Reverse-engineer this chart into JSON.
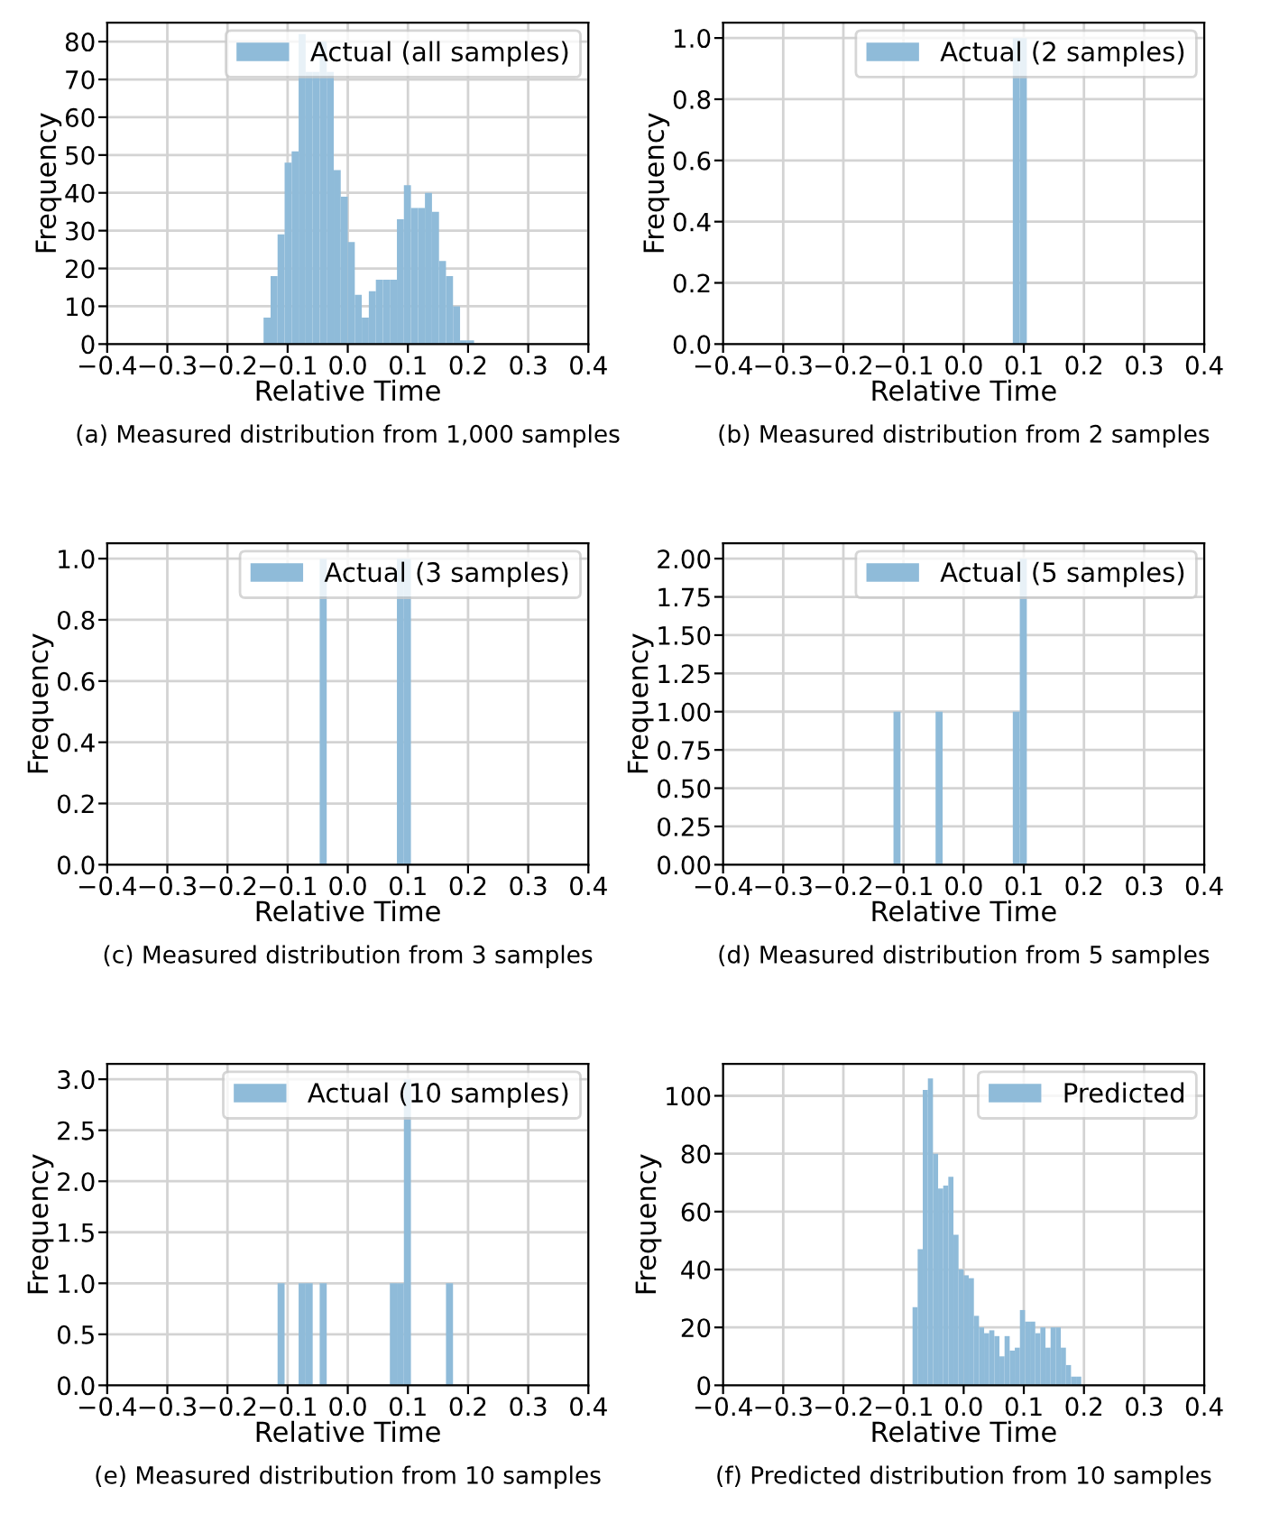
{
  "chart_data": [
    {
      "type": "histogram",
      "xlabel": "Relative Time",
      "ylabel": "Frequency",
      "annotations": [
        "(a) Measured distribution from 1,000 samples"
      ],
      "bins": [
        -0.14,
        -0.1283,
        -0.1167,
        -0.105,
        -0.0933,
        -0.0817,
        -0.07,
        -0.0583,
        -0.0467,
        -0.035,
        -0.0233,
        -0.0117,
        0.0,
        0.0117,
        0.0233,
        0.035,
        0.0467,
        0.0583,
        0.07,
        0.0817,
        0.0933,
        0.105,
        0.1167,
        0.1283,
        0.14,
        0.1517,
        0.1633,
        0.175,
        0.1867,
        0.1983,
        0.21
      ],
      "series": [
        {
          "name": "Actual (all samples)",
          "color": "#8fbbd9",
          "values": [
            7,
            18,
            29,
            48,
            51,
            82,
            72,
            72,
            80,
            72,
            46,
            39,
            27,
            13,
            7,
            14,
            17,
            17,
            17,
            33,
            42,
            36,
            36,
            40,
            35,
            22,
            18,
            10,
            1,
            1
          ]
        }
      ],
      "xlim": [
        -0.4,
        0.4
      ],
      "xticks": [
        {
          "value": -0.4,
          "label": "−0.4"
        },
        {
          "value": -0.3,
          "label": "−0.3"
        },
        {
          "value": -0.2,
          "label": "−0.2"
        },
        {
          "value": -0.1,
          "label": "−0.1"
        },
        {
          "value": 0,
          "label": "0.0"
        },
        0.1,
        0.2,
        0.3,
        0.4
      ],
      "ylim": [
        0,
        85
      ],
      "yticks": [
        0,
        10,
        20,
        30,
        40,
        50,
        60,
        70,
        80
      ],
      "grid": true,
      "legend": "top right"
    },
    {
      "type": "histogram",
      "xlabel": "Relative Time",
      "ylabel": "Frequency",
      "annotations": [
        "(b) Measured distribution from 2 samples"
      ],
      "bins": [
        -0.14,
        -0.1283,
        -0.1167,
        -0.105,
        -0.0933,
        -0.0817,
        -0.07,
        -0.0583,
        -0.0467,
        -0.035,
        -0.0233,
        -0.0117,
        0.0,
        0.0117,
        0.0233,
        0.035,
        0.0467,
        0.0583,
        0.07,
        0.0817,
        0.0933,
        0.105,
        0.1167,
        0.1283,
        0.14,
        0.1517,
        0.1633,
        0.175,
        0.1867,
        0.1983,
        0.21
      ],
      "series": [
        {
          "name": "Actual (2 samples)",
          "color": "#8fbbd9",
          "values": [
            0,
            0,
            0,
            0,
            0,
            0,
            0,
            0,
            0,
            0,
            0,
            0,
            0,
            0,
            0,
            0,
            0,
            0,
            0,
            1,
            1,
            0,
            0,
            0,
            0,
            0,
            0,
            0,
            0,
            0
          ]
        }
      ],
      "xlim": [
        -0.4,
        0.4
      ],
      "xticks": [
        {
          "value": -0.4,
          "label": "−0.4"
        },
        {
          "value": -0.3,
          "label": "−0.3"
        },
        {
          "value": -0.2,
          "label": "−0.2"
        },
        {
          "value": -0.1,
          "label": "−0.1"
        },
        {
          "value": 0,
          "label": "0.0"
        },
        0.1,
        0.2,
        0.3,
        0.4
      ],
      "ylim": [
        0,
        1.05
      ],
      "yticks": [
        {
          "value": 0,
          "label": "0.0"
        },
        0.2,
        0.4,
        0.6,
        0.8,
        {
          "value": 1,
          "label": "1.0"
        }
      ],
      "grid": true,
      "legend": "top right"
    },
    {
      "type": "histogram",
      "xlabel": "Relative Time",
      "ylabel": "Frequency",
      "annotations": [
        "(c) Measured distribution from 3 samples"
      ],
      "bins": [
        -0.14,
        -0.1283,
        -0.1167,
        -0.105,
        -0.0933,
        -0.0817,
        -0.07,
        -0.0583,
        -0.0467,
        -0.035,
        -0.0233,
        -0.0117,
        0.0,
        0.0117,
        0.0233,
        0.035,
        0.0467,
        0.0583,
        0.07,
        0.0817,
        0.0933,
        0.105,
        0.1167,
        0.1283,
        0.14,
        0.1517,
        0.1633,
        0.175,
        0.1867,
        0.1983,
        0.21
      ],
      "series": [
        {
          "name": "Actual (3 samples)",
          "color": "#8fbbd9",
          "values": [
            0,
            0,
            0,
            0,
            0,
            0,
            0,
            0,
            1,
            0,
            0,
            0,
            0,
            0,
            0,
            0,
            0,
            0,
            0,
            1,
            1,
            0,
            0,
            0,
            0,
            0,
            0,
            0,
            0,
            0
          ]
        }
      ],
      "xlim": [
        -0.4,
        0.4
      ],
      "xticks": [
        {
          "value": -0.4,
          "label": "−0.4"
        },
        {
          "value": -0.3,
          "label": "−0.3"
        },
        {
          "value": -0.2,
          "label": "−0.2"
        },
        {
          "value": -0.1,
          "label": "−0.1"
        },
        {
          "value": 0,
          "label": "0.0"
        },
        0.1,
        0.2,
        0.3,
        0.4
      ],
      "ylim": [
        0,
        1.05
      ],
      "yticks": [
        {
          "value": 0,
          "label": "0.0"
        },
        0.2,
        0.4,
        0.6,
        0.8,
        {
          "value": 1,
          "label": "1.0"
        }
      ],
      "grid": true,
      "legend": "top right"
    },
    {
      "type": "histogram",
      "xlabel": "Relative Time",
      "ylabel": "Frequency",
      "annotations": [
        "(d) Measured distribution from 5 samples"
      ],
      "bins": [
        -0.14,
        -0.1283,
        -0.1167,
        -0.105,
        -0.0933,
        -0.0817,
        -0.07,
        -0.0583,
        -0.0467,
        -0.035,
        -0.0233,
        -0.0117,
        0.0,
        0.0117,
        0.0233,
        0.035,
        0.0467,
        0.0583,
        0.07,
        0.0817,
        0.0933,
        0.105,
        0.1167,
        0.1283,
        0.14,
        0.1517,
        0.1633,
        0.175,
        0.1867,
        0.1983,
        0.21
      ],
      "series": [
        {
          "name": "Actual (5 samples)",
          "color": "#8fbbd9",
          "values": [
            0,
            0,
            1,
            0,
            0,
            0,
            0,
            0,
            1,
            0,
            0,
            0,
            0,
            0,
            0,
            0,
            0,
            0,
            0,
            1,
            2,
            0,
            0,
            0,
            0,
            0,
            0,
            0,
            0,
            0
          ]
        }
      ],
      "xlim": [
        -0.4,
        0.4
      ],
      "xticks": [
        {
          "value": -0.4,
          "label": "−0.4"
        },
        {
          "value": -0.3,
          "label": "−0.3"
        },
        {
          "value": -0.2,
          "label": "−0.2"
        },
        {
          "value": -0.1,
          "label": "−0.1"
        },
        {
          "value": 0,
          "label": "0.0"
        },
        0.1,
        0.2,
        0.3,
        0.4
      ],
      "ylim": [
        0,
        2.1
      ],
      "yticks": [
        {
          "value": 0,
          "label": "0.00"
        },
        {
          "value": 0.25,
          "label": "0.25"
        },
        {
          "value": 0.5,
          "label": "0.50"
        },
        {
          "value": 0.75,
          "label": "0.75"
        },
        {
          "value": 1,
          "label": "1.00"
        },
        {
          "value": 1.25,
          "label": "1.25"
        },
        {
          "value": 1.5,
          "label": "1.50"
        },
        {
          "value": 1.75,
          "label": "1.75"
        },
        {
          "value": 2,
          "label": "2.00"
        }
      ],
      "grid": true,
      "legend": "top right"
    },
    {
      "type": "histogram",
      "xlabel": "Relative Time",
      "ylabel": "Frequency",
      "annotations": [
        "(e) Measured distribution from 10 samples"
      ],
      "bins": [
        -0.14,
        -0.1283,
        -0.1167,
        -0.105,
        -0.0933,
        -0.0817,
        -0.07,
        -0.0583,
        -0.0467,
        -0.035,
        -0.0233,
        -0.0117,
        0.0,
        0.0117,
        0.0233,
        0.035,
        0.0467,
        0.0583,
        0.07,
        0.0817,
        0.0933,
        0.105,
        0.1167,
        0.1283,
        0.14,
        0.1517,
        0.1633,
        0.175,
        0.1867,
        0.1983,
        0.21
      ],
      "series": [
        {
          "name": "Actual (10 samples)",
          "color": "#8fbbd9",
          "values": [
            0,
            0,
            1,
            0,
            0,
            1,
            1,
            0,
            1,
            0,
            0,
            0,
            0,
            0,
            0,
            0,
            0,
            0,
            1,
            1,
            3,
            0,
            0,
            0,
            0,
            0,
            1,
            0,
            0,
            0
          ]
        }
      ],
      "xlim": [
        -0.4,
        0.4
      ],
      "xticks": [
        {
          "value": -0.4,
          "label": "−0.4"
        },
        {
          "value": -0.3,
          "label": "−0.3"
        },
        {
          "value": -0.2,
          "label": "−0.2"
        },
        {
          "value": -0.1,
          "label": "−0.1"
        },
        {
          "value": 0,
          "label": "0.0"
        },
        0.1,
        0.2,
        0.3,
        0.4
      ],
      "ylim": [
        0,
        3.15
      ],
      "yticks": [
        {
          "value": 0,
          "label": "0.0"
        },
        0.5,
        {
          "value": 1,
          "label": "1.0"
        },
        1.5,
        {
          "value": 2,
          "label": "2.0"
        },
        2.5,
        {
          "value": 3,
          "label": "3.0"
        }
      ],
      "grid": true,
      "legend": "top right"
    },
    {
      "type": "histogram",
      "xlabel": "Relative Time",
      "ylabel": "Frequency",
      "annotations": [
        "(f) Predicted distribution from 10 samples"
      ],
      "bins": [
        -0.085,
        -0.0765,
        -0.068,
        -0.0595,
        -0.051,
        -0.0425,
        -0.034,
        -0.0255,
        -0.017,
        -0.0085,
        0.0,
        0.0085,
        0.017,
        0.0255,
        0.034,
        0.0425,
        0.051,
        0.0595,
        0.068,
        0.0765,
        0.085,
        0.0935,
        0.102,
        0.1105,
        0.119,
        0.1275,
        0.136,
        0.1445,
        0.153,
        0.1615,
        0.17,
        0.1785,
        0.187,
        0.1955
      ],
      "series": [
        {
          "name": "Predicted",
          "color": "#8fbbd9",
          "values": [
            27,
            47,
            102,
            106,
            80,
            68,
            69,
            72,
            52,
            40,
            38,
            37,
            24,
            20,
            18,
            19,
            17,
            10,
            17,
            12,
            13,
            26,
            22,
            22,
            18,
            20,
            13,
            20,
            20,
            13,
            7,
            3,
            3
          ]
        }
      ],
      "xlim": [
        -0.4,
        0.4
      ],
      "xticks": [
        {
          "value": -0.4,
          "label": "−0.4"
        },
        {
          "value": -0.3,
          "label": "−0.3"
        },
        {
          "value": -0.2,
          "label": "−0.2"
        },
        {
          "value": -0.1,
          "label": "−0.1"
        },
        {
          "value": 0,
          "label": "0.0"
        },
        0.1,
        0.2,
        0.3,
        0.4
      ],
      "ylim": [
        0,
        111
      ],
      "yticks": [
        0,
        20,
        40,
        60,
        80,
        100
      ],
      "grid": true,
      "legend": "top right"
    }
  ]
}
